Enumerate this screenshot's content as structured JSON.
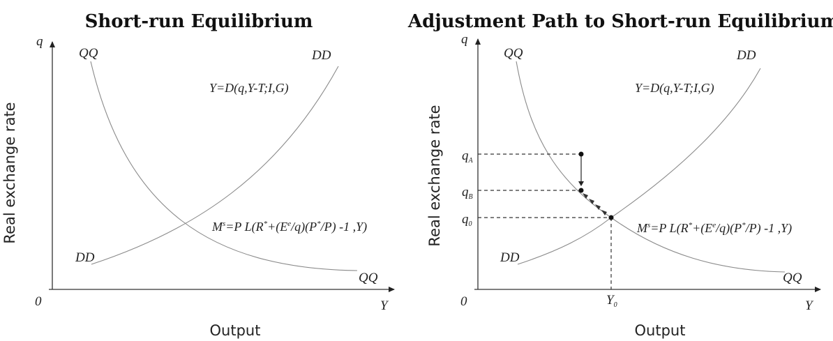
{
  "left": {
    "title": "Short-run Equilibrium",
    "ylabel": "Real exchange rate",
    "xlabel": "Output",
    "y_axis": "q",
    "x_axis": "Y",
    "origin": "0",
    "qq_top": "QQ",
    "qq_bottom": "QQ",
    "dd_top": "DD",
    "dd_bottom": "DD",
    "dd_eq": "Y=D(q,Y-T;I,G)",
    "qq_eq": {
      "p1": "M",
      "p1sup": "s",
      "p2": "=P L(R",
      "p2sup": "*",
      "p3": "+(E",
      "p3sup": "e",
      "p4": "/q)(P",
      "p4sup": "*",
      "p5": "/P) -1 ,Y)"
    }
  },
  "right": {
    "title": "Adjustment Path to Short-run Equilibrium",
    "ylabel": "Real exchange rate",
    "xlabel": "Output",
    "y_axis": "q",
    "x_axis": "Y",
    "origin": "0",
    "qq_top": "QQ",
    "qq_bottom": "QQ",
    "dd_top": "DD",
    "dd_bottom": "DD",
    "dd_eq": "Y=D(q,Y-T;I,G)",
    "qq_eq": {
      "p1": "M",
      "p1sup": "s",
      "p2": "=P L(R",
      "p2sup": "*",
      "p3": "+(E",
      "p3sup": "e",
      "p4": "/q)(P",
      "p4sup": "*",
      "p5": "/P) -1 ,Y)"
    },
    "qA": "q",
    "qA_sub": "A",
    "qB": "q",
    "qB_sub": "B",
    "q0": "q",
    "q0_sub": "0",
    "Y0": "Y",
    "Y0_sub": "0"
  }
}
